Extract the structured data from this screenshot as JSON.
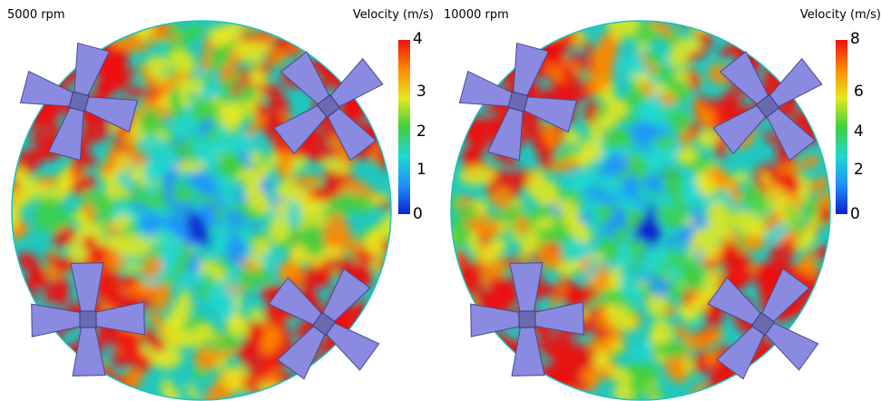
{
  "panels": [
    {
      "speed_label": "5000 rpm",
      "colorbar_title": "Velocity (m/s)",
      "colorbar_ticks": [
        "4",
        "3",
        "2",
        "1",
        "0"
      ],
      "colorbar_range": [
        0,
        4
      ]
    },
    {
      "speed_label": "10000 rpm",
      "colorbar_title": "Velocity (m/s)",
      "colorbar_ticks": [
        "8",
        "6",
        "4",
        "2",
        "0"
      ],
      "colorbar_range": [
        0,
        8
      ]
    }
  ],
  "colormap": [
    "#1020d0",
    "#1e90ff",
    "#20d8d0",
    "#40d040",
    "#e8e820",
    "#ff8800",
    "#ee1010"
  ],
  "impeller_color": "#8a8ae0"
}
